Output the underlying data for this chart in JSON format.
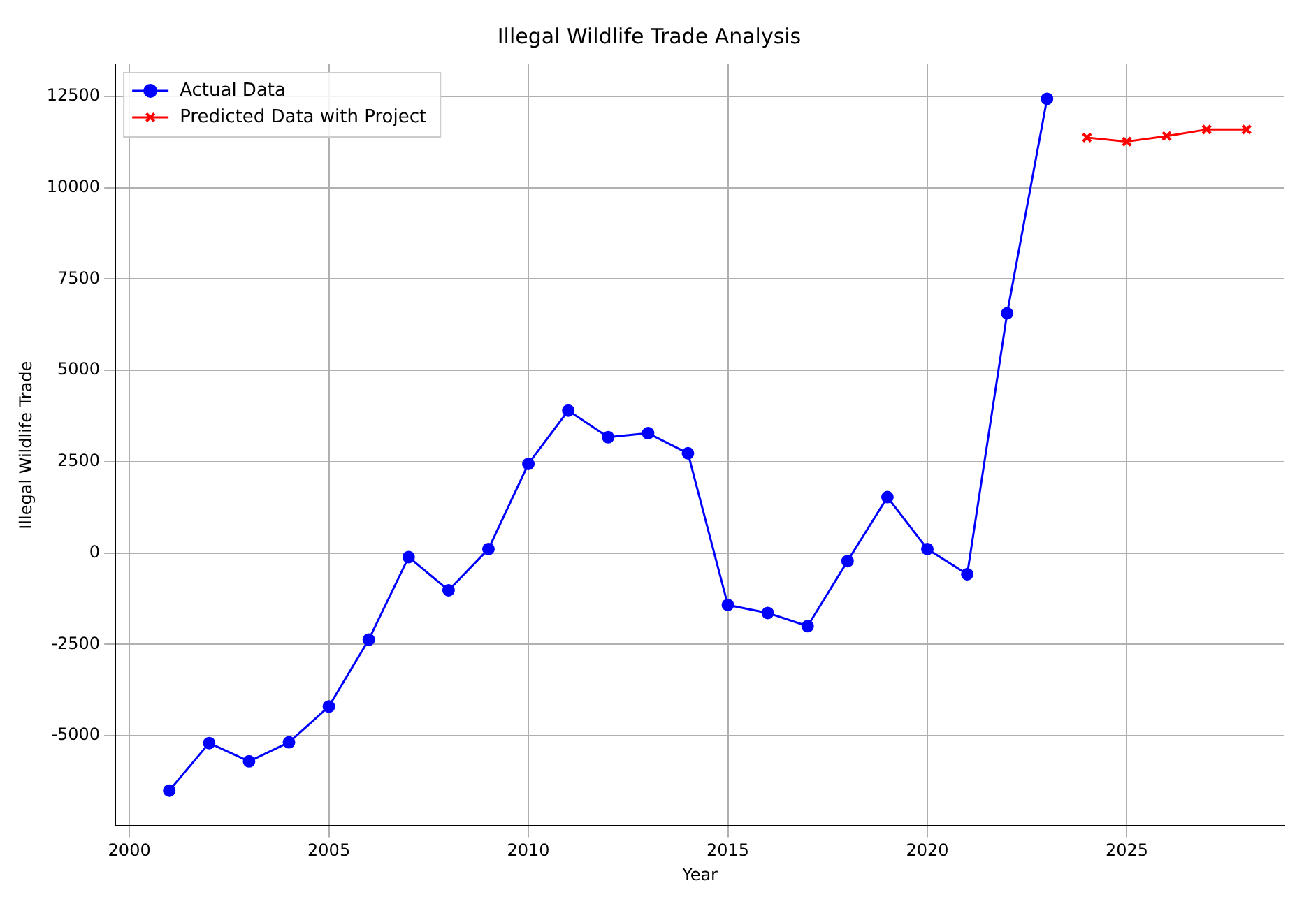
{
  "chart_data": {
    "type": "line",
    "title": "Illegal Wildlife Trade Analysis",
    "xlabel": "Year",
    "ylabel": "Illegal Wildlife Trade",
    "x": [
      2001,
      2002,
      2003,
      2004,
      2005,
      2006,
      2007,
      2008,
      2009,
      2010,
      2011,
      2012,
      2013,
      2014,
      2015,
      2016,
      2017,
      2018,
      2019,
      2020,
      2021,
      2022,
      2023
    ],
    "series": [
      {
        "name": "Actual Data",
        "color": "#0000ff",
        "marker": "circle",
        "values": [
          -6500,
          -5200,
          -5700,
          -5180,
          -4200,
          -2370,
          -110,
          -1020,
          110,
          2440,
          3900,
          3170,
          3280,
          2730,
          -1420,
          -1640,
          -2000,
          -220,
          1530,
          110,
          -580,
          6560,
          12430
        ]
      },
      {
        "name": "Predicted Data with Project",
        "color": "#ff0000",
        "marker": "cross",
        "x": [
          2024,
          2025,
          2026,
          2027,
          2028
        ],
        "values": [
          11370,
          11260,
          11410,
          11590,
          11590
        ]
      }
    ],
    "xlim": [
      1999.65,
      2028.95
    ],
    "xticks": [
      2000,
      2005,
      2010,
      2015,
      2020,
      2025
    ],
    "ylim": [
      -7470,
      13375
    ],
    "yticks": [
      -5000,
      -2500,
      0,
      2500,
      5000,
      7500,
      10000,
      12500
    ],
    "grid": true,
    "legend": "top left",
    "line_style": "solid"
  }
}
